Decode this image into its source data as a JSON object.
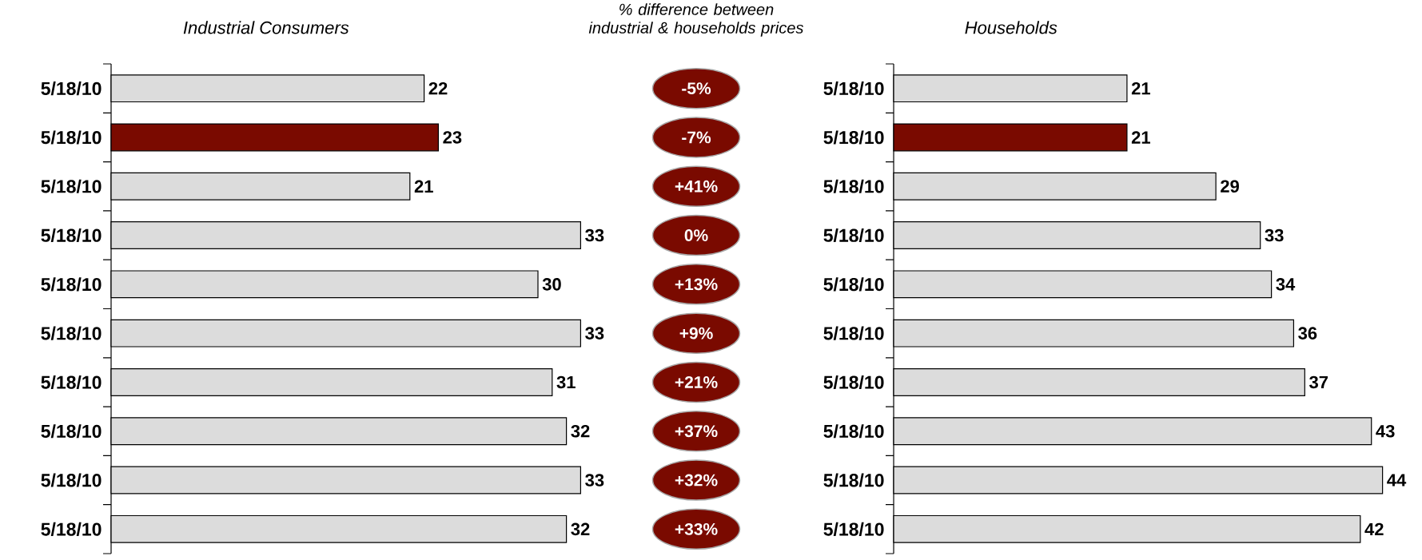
{
  "chart_data": [
    {
      "type": "bar",
      "orientation": "horizontal",
      "title": "Industrial Consumers",
      "categories": [
        "5/18/10",
        "5/18/10",
        "5/18/10",
        "5/18/10",
        "5/18/10",
        "5/18/10",
        "5/18/10",
        "5/18/10",
        "5/18/10",
        "5/18/10"
      ],
      "values": [
        22,
        23,
        21,
        33,
        30,
        33,
        31,
        32,
        33,
        32
      ],
      "colors": [
        "#dcdcdc",
        "#7a0a00",
        "#dcdcdc",
        "#dcdcdc",
        "#dcdcdc",
        "#dcdcdc",
        "#dcdcdc",
        "#dcdcdc",
        "#dcdcdc",
        "#dcdcdc"
      ],
      "data_labels": true,
      "tick_labels": "y"
    },
    {
      "type": "other",
      "title": "% difference between industrial & households prices",
      "color": "#7a0a00",
      "annotations": [
        "-5%",
        "-7%",
        "+41%",
        "0%",
        "+13%",
        "+9%",
        "+21%",
        "+37%",
        "+32%",
        "+33%"
      ]
    },
    {
      "type": "bar",
      "orientation": "horizontal",
      "title": "Households",
      "categories": [
        "5/18/10",
        "5/18/10",
        "5/18/10",
        "5/18/10",
        "5/18/10",
        "5/18/10",
        "5/18/10",
        "5/18/10",
        "5/18/10",
        "5/18/10"
      ],
      "values": [
        21,
        21,
        29,
        33,
        34,
        36,
        37,
        43,
        44,
        42
      ],
      "colors": [
        "#dcdcdc",
        "#7a0a00",
        "#dcdcdc",
        "#dcdcdc",
        "#dcdcdc",
        "#dcdcdc",
        "#dcdcdc",
        "#dcdcdc",
        "#dcdcdc",
        "#dcdcdc"
      ],
      "data_labels": true,
      "tick_labels": "y"
    }
  ]
}
